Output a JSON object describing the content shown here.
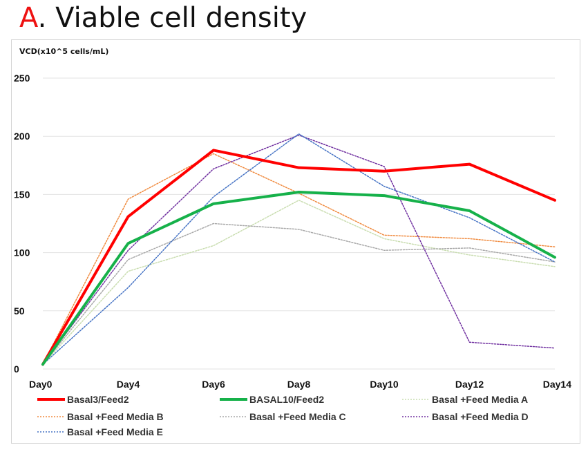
{
  "heading": {
    "letter": "A",
    "rest": ". Viable cell density"
  },
  "chart_data": {
    "type": "line",
    "title": "",
    "ylabel": "VCD(x10^5 cells/mL)",
    "xlabel": "",
    "categories": [
      "Day0",
      "Day4",
      "Day6",
      "Day8",
      "Day10",
      "Day12",
      "Day14"
    ],
    "ylim": [
      0,
      250
    ],
    "yticks": [
      0,
      50,
      100,
      150,
      200,
      250
    ],
    "grid": true,
    "legend": "bottom",
    "series": [
      {
        "name": "Basal3/Feed2",
        "color": "#ff0000",
        "style": "solid",
        "width": 4,
        "values": [
          4,
          131,
          188,
          173,
          170,
          176,
          145
        ]
      },
      {
        "name": "BASAL10/Feed2",
        "color": "#16b14a",
        "style": "solid",
        "width": 4,
        "values": [
          4,
          108,
          142,
          152,
          149,
          136,
          96
        ]
      },
      {
        "name": "Basal +Feed Media A",
        "color": "#c9ddb0",
        "style": "dotted",
        "width": 1.5,
        "values": [
          4,
          84,
          106,
          145,
          112,
          98,
          88
        ]
      },
      {
        "name": "Basal +Feed Media B",
        "color": "#f08a3e",
        "style": "dotted",
        "width": 1.5,
        "values": [
          4,
          146,
          185,
          151,
          115,
          112,
          105
        ]
      },
      {
        "name": "Basal +Feed Media C",
        "color": "#a8a8a8",
        "style": "dotted",
        "width": 1.5,
        "values": [
          4,
          94,
          125,
          120,
          102,
          104,
          92
        ]
      },
      {
        "name": "Basal +Feed Media D",
        "color": "#7030a0",
        "style": "dotted",
        "width": 1.5,
        "values": [
          4,
          102,
          172,
          201,
          174,
          23,
          18
        ]
      },
      {
        "name": "Basal +Feed Media E",
        "color": "#4472c4",
        "style": "dotted",
        "width": 1.5,
        "values": [
          4,
          70,
          148,
          202,
          157,
          130,
          92
        ]
      }
    ]
  }
}
